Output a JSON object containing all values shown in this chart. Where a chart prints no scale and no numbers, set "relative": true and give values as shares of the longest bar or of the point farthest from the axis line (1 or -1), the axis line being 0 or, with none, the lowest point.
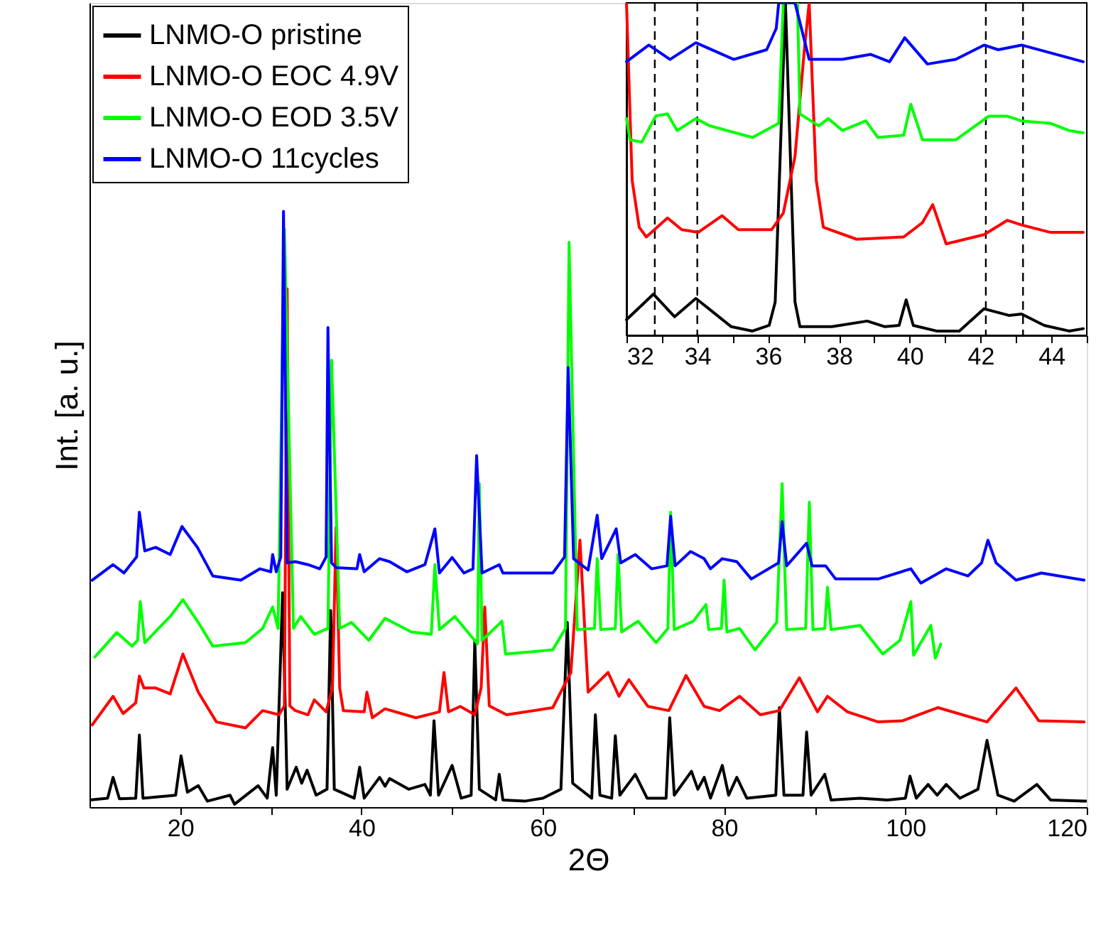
{
  "chart_data": [
    {
      "type": "line",
      "xlabel": "2Θ",
      "ylabel": "Int. [a. u.]",
      "xlim": [
        10,
        120
      ],
      "relative": true,
      "legend": "top left",
      "xticks": [
        20,
        {
          "value": 30,
          "label": null
        },
        40,
        {
          "value": 50,
          "label": null
        },
        60,
        {
          "value": 70,
          "label": null
        },
        80,
        {
          "value": 90,
          "label": null
        },
        100,
        {
          "value": 110,
          "label": null
        },
        120
      ],
      "series": [
        {
          "name": "LNMO-O pristine",
          "color": "#000000",
          "x": [
            10,
            12,
            12.6,
            13.3,
            15.1,
            15.5,
            15.9,
            19.5,
            20.1,
            20.8,
            22,
            23,
            25.5,
            26,
            28.6,
            29.6,
            30.2,
            30.6,
            31.3,
            31.8,
            32.8,
            33.4,
            34,
            35,
            36.2,
            36.6,
            37,
            39.2,
            39.8,
            40.3,
            42,
            42.6,
            43.1,
            45.2,
            47,
            47.6,
            48,
            48.5,
            50,
            51,
            52.1,
            52.5,
            53,
            54.8,
            55.2,
            55.6,
            58,
            60,
            62,
            62.7,
            63.3,
            65.4,
            65.8,
            66.3,
            67.6,
            68,
            68.5,
            70.2,
            71.5,
            73.6,
            74,
            74.5,
            76.4,
            77.1,
            77.8,
            78.5,
            79.8,
            80.5,
            81.4,
            82.5,
            85.7,
            86.1,
            86.6,
            88.7,
            89.1,
            89.6,
            91.1,
            91.8,
            95,
            98,
            100,
            100.5,
            101.2,
            102.5,
            103.5,
            104.5,
            106,
            108,
            109,
            110.2,
            112,
            114.5,
            116,
            120
          ],
          "values": [
            0.012,
            0.015,
            0.05,
            0.014,
            0.015,
            0.121,
            0.015,
            0.02,
            0.086,
            0.025,
            0.036,
            0.01,
            0.02,
            0.005,
            0.036,
            0.015,
            0.1,
            0.02,
            0.36,
            0.03,
            0.067,
            0.04,
            0.062,
            0.02,
            0.03,
            0.33,
            0.03,
            0.015,
            0.067,
            0.015,
            0.05,
            0.035,
            0.048,
            0.03,
            0.038,
            0.02,
            0.145,
            0.02,
            0.07,
            0.015,
            0.02,
            0.28,
            0.03,
            0.012,
            0.055,
            0.012,
            0.01,
            0.015,
            0.03,
            0.31,
            0.04,
            0.015,
            0.155,
            0.02,
            0.015,
            0.12,
            0.02,
            0.055,
            0.015,
            0.015,
            0.15,
            0.02,
            0.06,
            0.03,
            0.05,
            0.015,
            0.07,
            0.02,
            0.05,
            0.015,
            0.02,
            0.167,
            0.02,
            0.02,
            0.126,
            0.02,
            0.055,
            0.012,
            0.015,
            0.012,
            0.015,
            0.052,
            0.015,
            0.038,
            0.02,
            0.038,
            0.015,
            0.03,
            0.112,
            0.02,
            0.01,
            0.038,
            0.012,
            0.01
          ]
        },
        {
          "name": "LNMO-O EOC 4.9V",
          "color": "#ff0000",
          "x": [
            10.3,
            12.6,
            13.7,
            15.1,
            15.5,
            16,
            17.3,
            18.9,
            20.3,
            22,
            24,
            27.2,
            29.1,
            30.9,
            31.5,
            31.8,
            32.1,
            32.7,
            34.1,
            34.8,
            36.1,
            36.8,
            37.2,
            37.6,
            38,
            40.3,
            40.6,
            41.2,
            42.6,
            46,
            48.6,
            49.1,
            49.6,
            50.9,
            52.5,
            53.2,
            53.6,
            54.1,
            56,
            61.1,
            63.1,
            64.1,
            65,
            67.2,
            68.4,
            69.5,
            71.6,
            73.9,
            75.8,
            77.8,
            79.5,
            81.7,
            84,
            86.1,
            88.3,
            90.3,
            91.4,
            93.6,
            97,
            99.7,
            103.6,
            109,
            112.2,
            114.7,
            119.7
          ],
          "values": [
            0.138,
            0.186,
            0.157,
            0.175,
            0.22,
            0.2,
            0.2,
            0.19,
            0.257,
            0.193,
            0.143,
            0.133,
            0.162,
            0.155,
            0.17,
            0.87,
            0.17,
            0.162,
            0.155,
            0.18,
            0.16,
            0.2,
            0.47,
            0.2,
            0.162,
            0.16,
            0.193,
            0.15,
            0.165,
            0.15,
            0.16,
            0.226,
            0.16,
            0.169,
            0.155,
            0.2,
            0.336,
            0.17,
            0.155,
            0.167,
            0.226,
            0.448,
            0.193,
            0.226,
            0.186,
            0.214,
            0.169,
            0.162,
            0.221,
            0.169,
            0.162,
            0.186,
            0.155,
            0.162,
            0.217,
            0.16,
            0.186,
            0.16,
            0.143,
            0.145,
            0.167,
            0.143,
            0.2,
            0.145,
            0.143
          ]
        },
        {
          "name": "LNMO-O EOD 3.5V",
          "color": "#00ff00",
          "x": [
            10.6,
            13,
            14.7,
            15.3,
            15.6,
            16.1,
            18.9,
            20.3,
            22,
            23.6,
            27.2,
            29.1,
            30.2,
            30.8,
            31.5,
            32.5,
            33.3,
            34.8,
            36.3,
            36.7,
            37.6,
            38.9,
            40.8,
            42.6,
            45.5,
            47.7,
            48.1,
            48.6,
            50.3,
            52.8,
            53,
            53.3,
            55.5,
            55.9,
            61.1,
            62.5,
            62.9,
            63.8,
            65.7,
            66,
            66.4,
            68,
            68.3,
            68.7,
            70.5,
            72.5,
            73.8,
            74.1,
            74.5,
            76.6,
            78,
            78.3,
            79.7,
            80,
            80.3,
            81.7,
            83.4,
            85.8,
            86.4,
            86.9,
            89,
            89.4,
            89.8,
            91.1,
            91.4,
            91.8,
            95,
            97.5,
            99.4,
            100.6,
            100.9,
            102.8,
            103.3,
            103.9
          ],
          "values": [
            0.252,
            0.293,
            0.27,
            0.28,
            0.345,
            0.276,
            0.32,
            0.348,
            0.31,
            0.27,
            0.276,
            0.3,
            0.336,
            0.3,
            0.97,
            0.3,
            0.32,
            0.29,
            0.3,
            0.75,
            0.3,
            0.31,
            0.28,
            0.317,
            0.294,
            0.29,
            0.407,
            0.298,
            0.32,
            0.274,
            0.543,
            0.28,
            0.312,
            0.257,
            0.264,
            0.3,
            0.948,
            0.298,
            0.3,
            0.417,
            0.298,
            0.3,
            0.424,
            0.294,
            0.312,
            0.276,
            0.3,
            0.495,
            0.298,
            0.312,
            0.34,
            0.298,
            0.3,
            0.381,
            0.294,
            0.3,
            0.264,
            0.31,
            0.543,
            0.298,
            0.3,
            0.512,
            0.298,
            0.3,
            0.369,
            0.298,
            0.305,
            0.257,
            0.28,
            0.345,
            0.255,
            0.305,
            0.25,
            0.274
          ]
        },
        {
          "name": "LNMO-O 11cycles",
          "color": "#0000ff",
          "x": [
            10.3,
            12.6,
            13.8,
            15.2,
            15.5,
            16.1,
            17.3,
            18.9,
            20.2,
            21.9,
            23.6,
            26.7,
            28.8,
            30,
            30.2,
            30.6,
            31.1,
            31.4,
            31.8,
            32.7,
            34.1,
            35.4,
            36.1,
            36.3,
            36.7,
            37.2,
            39.5,
            39.8,
            40.3,
            42,
            43.1,
            45,
            47,
            48.1,
            48.6,
            50,
            51.3,
            52.3,
            52.7,
            53.3,
            55.2,
            55.6,
            61.1,
            62.4,
            62.8,
            63.4,
            65,
            66,
            66.5,
            68.1,
            68.6,
            70.2,
            72,
            73.7,
            74.1,
            74.6,
            76.3,
            77.8,
            78.5,
            79.8,
            81.4,
            83,
            86,
            86.4,
            86.9,
            89.1,
            89.7,
            91.2,
            92.3,
            97,
            100.6,
            101.7,
            104.5,
            106.9,
            108.4,
            109.1,
            110,
            112.2,
            115,
            119.7
          ],
          "values": [
            0.381,
            0.407,
            0.393,
            0.42,
            0.495,
            0.43,
            0.436,
            0.424,
            0.471,
            0.436,
            0.388,
            0.381,
            0.4,
            0.395,
            0.424,
            0.395,
            0.42,
            1.0,
            0.41,
            0.412,
            0.407,
            0.4,
            0.42,
            0.805,
            0.41,
            0.402,
            0.4,
            0.424,
            0.395,
            0.417,
            0.412,
            0.395,
            0.407,
            0.467,
            0.393,
            0.419,
            0.393,
            0.4,
            0.59,
            0.393,
            0.407,
            0.393,
            0.393,
            0.42,
            0.738,
            0.417,
            0.398,
            0.49,
            0.417,
            0.467,
            0.41,
            0.424,
            0.4,
            0.405,
            0.488,
            0.405,
            0.429,
            0.417,
            0.4,
            0.417,
            0.412,
            0.383,
            0.41,
            0.479,
            0.405,
            0.443,
            0.405,
            0.405,
            0.383,
            0.383,
            0.4,
            0.376,
            0.4,
            0.388,
            0.41,
            0.448,
            0.41,
            0.381,
            0.393,
            0.381
          ]
        }
      ]
    },
    {
      "type": "line",
      "xlim": [
        32,
        45
      ],
      "relative": true,
      "xticks": [
        32,
        {
          "value": 33,
          "label": null
        },
        34,
        {
          "value": 35,
          "label": null
        },
        36,
        {
          "value": 37,
          "label": null
        },
        38,
        {
          "value": 39,
          "label": null
        },
        40,
        {
          "value": 41,
          "label": null
        },
        42,
        {
          "value": 43,
          "label": null
        },
        44,
        {
          "value": 45,
          "label": null
        }
      ],
      "ref_lines": [
        {
          "axis": "x",
          "value": 32.8,
          "color": "#000000",
          "line_style": "dashed"
        },
        {
          "axis": "x",
          "value": 34,
          "color": "#000000",
          "line_style": "dashed"
        },
        {
          "axis": "x",
          "value": 42.15,
          "color": "#000000",
          "line_style": "dashed"
        },
        {
          "axis": "x",
          "value": 43.2,
          "color": "#000000",
          "line_style": "dashed"
        }
      ],
      "series": [
        {
          "color": "#000000",
          "x": [
            32,
            32.76,
            33.36,
            33.96,
            34.96,
            35.56,
            36.03,
            36.2,
            36.49,
            36.76,
            36.9,
            37.8,
            38.8,
            39.3,
            39.7,
            39.9,
            40.1,
            40.76,
            41.4,
            42.1,
            42.8,
            43.16,
            43.8,
            44.5,
            44.9
          ],
          "values": [
            0.047,
            0.124,
            0.056,
            0.111,
            0.026,
            0.013,
            0.03,
            0.1,
            1.0,
            0.1,
            0.026,
            0.026,
            0.043,
            0.026,
            0.03,
            0.107,
            0.03,
            0.013,
            0.013,
            0.08,
            0.06,
            0.064,
            0.03,
            0.013,
            0.02
          ]
        },
        {
          "color": "#ff0000",
          "x": [
            32,
            32.16,
            32.36,
            32.56,
            33.16,
            33.56,
            34.03,
            34.7,
            35.16,
            36.1,
            36.43,
            36.76,
            37.03,
            37.16,
            37.36,
            37.56,
            38.5,
            39.83,
            40.36,
            40.65,
            41.03,
            42.1,
            42.76,
            43.16,
            43.96,
            44.9
          ],
          "values": [
            1.0,
            0.466,
            0.325,
            0.296,
            0.353,
            0.318,
            0.31,
            0.36,
            0.318,
            0.318,
            0.368,
            0.538,
            0.866,
            1.0,
            0.466,
            0.325,
            0.289,
            0.296,
            0.339,
            0.393,
            0.275,
            0.303,
            0.346,
            0.332,
            0.31,
            0.31
          ]
        },
        {
          "color": "#00ff00",
          "x": [
            32,
            32.1,
            32.43,
            32.83,
            33.16,
            33.43,
            33.96,
            34.36,
            35.56,
            36.3,
            36.43,
            36.83,
            36.9,
            37.43,
            37.7,
            38.1,
            38.76,
            39.1,
            39.83,
            40.03,
            40.36,
            41.3,
            42.23,
            42.76,
            43.16,
            43.96,
            44.5,
            44.9
          ],
          "values": [
            0.652,
            0.588,
            0.581,
            0.66,
            0.666,
            0.616,
            0.652,
            0.63,
            0.595,
            0.638,
            1.0,
            1.0,
            0.666,
            0.63,
            0.652,
            0.616,
            0.645,
            0.595,
            0.602,
            0.695,
            0.588,
            0.588,
            0.659,
            0.659,
            0.645,
            0.638,
            0.616,
            0.609
          ]
        },
        {
          "color": "#0000ff",
          "x": [
            32,
            32.63,
            33.23,
            33.96,
            35.03,
            35.96,
            36.23,
            36.3,
            36.76,
            37.16,
            38.1,
            38.9,
            39.43,
            39.86,
            40.5,
            41.3,
            42.1,
            42.5,
            43.16,
            44.9
          ],
          "values": [
            0.823,
            0.873,
            0.83,
            0.88,
            0.83,
            0.859,
            0.923,
            1.0,
            1.0,
            0.83,
            0.83,
            0.845,
            0.823,
            0.895,
            0.816,
            0.83,
            0.873,
            0.859,
            0.873,
            0.823
          ]
        }
      ]
    }
  ]
}
